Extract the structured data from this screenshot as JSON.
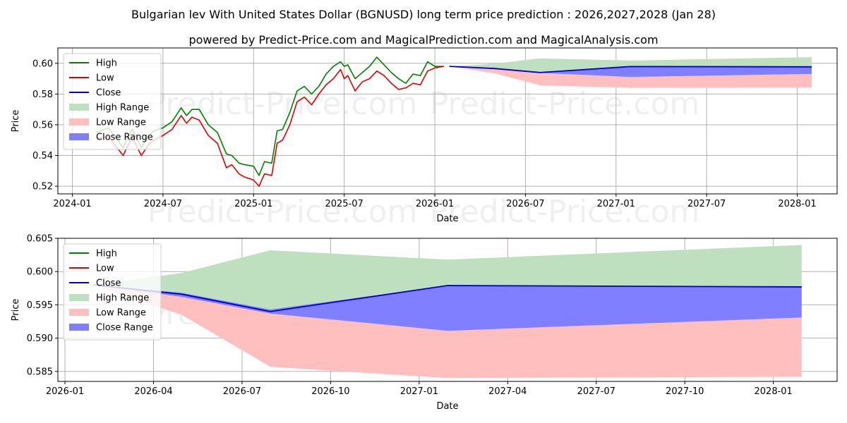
{
  "chart_data": {
    "title_line1": "Bulgarian lev With United States Dollar (BGNUSD) long term price prediction : 2026,2027,2028 (Jan 28)",
    "title_line2": "powered by Predict-Price.com and MagicalPrediction.com and MagicalAnalysis.com",
    "watermark": "Predict-Price.com",
    "colors": {
      "high": "#008000",
      "low": "#e00000",
      "close": "#0000cc",
      "high_range": "#bfe0bf",
      "low_range": "#ffbfbf",
      "close_range": "#7f7fff",
      "grid": "#b0b0b0"
    },
    "legend": [
      "High",
      "Low",
      "Close",
      "High Range",
      "Low Range",
      "Close Range"
    ],
    "panels": [
      {
        "type": "line",
        "xlabel": "Date",
        "ylabel": "Price",
        "xlim": [
          2023.92,
          2028.22
        ],
        "ylim": [
          0.515,
          0.61
        ],
        "x_ticks": [
          {
            "value": 2024.0,
            "label": "2024-01"
          },
          {
            "value": 2024.5,
            "label": "2024-07"
          },
          {
            "value": 2025.0,
            "label": "2025-01"
          },
          {
            "value": 2025.5,
            "label": "2025-07"
          },
          {
            "value": 2026.0,
            "label": "2026-01"
          },
          {
            "value": 2026.5,
            "label": "2026-07"
          },
          {
            "value": 2027.0,
            "label": "2027-01"
          },
          {
            "value": 2027.5,
            "label": "2027-07"
          },
          {
            "value": 2028.0,
            "label": "2028-01"
          }
        ],
        "y_ticks": [
          {
            "value": 0.52,
            "label": "0.52"
          },
          {
            "value": 0.54,
            "label": "0.54"
          },
          {
            "value": 0.56,
            "label": "0.56"
          },
          {
            "value": 0.58,
            "label": "0.58"
          },
          {
            "value": 0.6,
            "label": "0.60"
          }
        ],
        "history_x": [
          2024.13,
          2024.2,
          2024.28,
          2024.3,
          2024.33,
          2024.38,
          2024.42,
          2024.45,
          2024.5,
          2024.55,
          2024.6,
          2024.63,
          2024.66,
          2024.7,
          2024.75,
          2024.8,
          2024.85,
          2024.88,
          2024.92,
          2024.95,
          2025.0,
          2025.03,
          2025.06,
          2025.1,
          2025.13,
          2025.16,
          2025.2,
          2025.24,
          2025.28,
          2025.32,
          2025.36,
          2025.4,
          2025.44,
          2025.48,
          2025.5,
          2025.52,
          2025.56,
          2025.6,
          2025.64,
          2025.68,
          2025.72,
          2025.76,
          2025.8,
          2025.84,
          2025.88,
          2025.92,
          2025.96,
          2026.0,
          2026.05
        ],
        "history_high": [
          0.555,
          0.558,
          0.545,
          0.55,
          0.557,
          0.545,
          0.553,
          0.556,
          0.558,
          0.562,
          0.571,
          0.566,
          0.57,
          0.57,
          0.56,
          0.555,
          0.541,
          0.54,
          0.535,
          0.534,
          0.533,
          0.527,
          0.536,
          0.535,
          0.556,
          0.557,
          0.568,
          0.582,
          0.585,
          0.58,
          0.585,
          0.593,
          0.598,
          0.601,
          0.598,
          0.599,
          0.59,
          0.594,
          0.598,
          0.604,
          0.599,
          0.594,
          0.59,
          0.587,
          0.593,
          0.592,
          0.601,
          0.598,
          0.598
        ],
        "history_low": [
          0.551,
          0.552,
          0.54,
          0.545,
          0.552,
          0.54,
          0.547,
          0.55,
          0.553,
          0.557,
          0.566,
          0.561,
          0.565,
          0.563,
          0.553,
          0.548,
          0.532,
          0.534,
          0.528,
          0.526,
          0.524,
          0.52,
          0.528,
          0.527,
          0.548,
          0.55,
          0.56,
          0.575,
          0.578,
          0.573,
          0.58,
          0.586,
          0.59,
          0.596,
          0.59,
          0.592,
          0.582,
          0.588,
          0.59,
          0.595,
          0.592,
          0.587,
          0.583,
          0.584,
          0.587,
          0.586,
          0.595,
          0.597,
          0.598
        ],
        "forecast_x": [
          2026.08,
          2026.33,
          2026.58,
          2027.08,
          2028.08
        ],
        "forecast_high": [
          0.598,
          0.5998,
          0.6032,
          0.6018,
          0.604
        ],
        "forecast_low": [
          0.598,
          0.5935,
          0.5857,
          0.584,
          0.5842
        ],
        "forecast_close_upper": [
          0.598,
          0.5968,
          0.5943,
          0.5979,
          0.5977
        ],
        "forecast_close_lower": [
          0.598,
          0.5962,
          0.5937,
          0.5911,
          0.5931
        ],
        "forecast_close": [
          0.598,
          0.5966,
          0.594,
          0.5979,
          0.5977
        ]
      },
      {
        "type": "area",
        "xlabel": "Date",
        "ylabel": "Price",
        "xlim": [
          2025.98,
          2028.18
        ],
        "ylim": [
          0.5835,
          0.605
        ],
        "x_ticks": [
          {
            "value": 2026.0,
            "label": "2026-01"
          },
          {
            "value": 2026.25,
            "label": "2026-04"
          },
          {
            "value": 2026.5,
            "label": "2026-07"
          },
          {
            "value": 2026.75,
            "label": "2026-10"
          },
          {
            "value": 2027.0,
            "label": "2027-01"
          },
          {
            "value": 2027.25,
            "label": "2027-04"
          },
          {
            "value": 2027.5,
            "label": "2027-07"
          },
          {
            "value": 2027.75,
            "label": "2027-10"
          },
          {
            "value": 2028.0,
            "label": "2028-01"
          }
        ],
        "y_ticks": [
          {
            "value": 0.585,
            "label": "0.585"
          },
          {
            "value": 0.59,
            "label": "0.590"
          },
          {
            "value": 0.595,
            "label": "0.595"
          },
          {
            "value": 0.6,
            "label": "0.600"
          },
          {
            "value": 0.605,
            "label": "0.605"
          }
        ],
        "forecast_x": [
          2026.08,
          2026.33,
          2026.58,
          2027.08,
          2028.08
        ],
        "forecast_high": [
          0.598,
          0.5998,
          0.6032,
          0.6018,
          0.604
        ],
        "forecast_low": [
          0.598,
          0.5935,
          0.5857,
          0.584,
          0.5842
        ],
        "forecast_close_upper": [
          0.598,
          0.5968,
          0.5943,
          0.5979,
          0.5977
        ],
        "forecast_close_lower": [
          0.598,
          0.5962,
          0.5937,
          0.5911,
          0.5931
        ],
        "forecast_close": [
          0.598,
          0.5966,
          0.594,
          0.5979,
          0.5977
        ]
      }
    ]
  }
}
